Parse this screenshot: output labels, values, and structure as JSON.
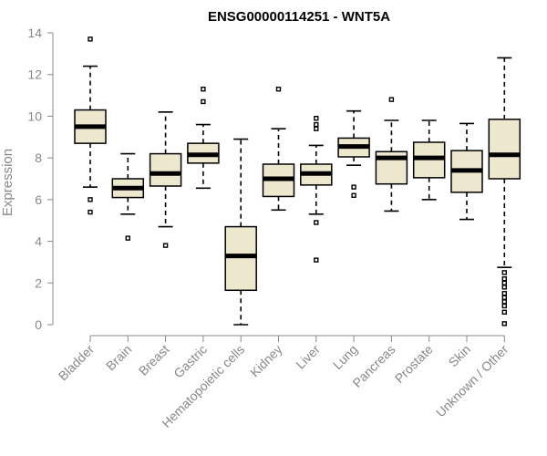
{
  "chart_data": {
    "type": "boxplot",
    "title": "ENSG00000114251 - WNT5A",
    "ylabel": "Expression",
    "ylim": [
      0,
      14
    ],
    "yticks": [
      0,
      2,
      4,
      6,
      8,
      10,
      12,
      14
    ],
    "grid": false,
    "categories": [
      "Bladder",
      "Brain",
      "Breast",
      "Gastric",
      "Hematopoietic cells",
      "Kidney",
      "Liver",
      "Lung",
      "Pancreas",
      "Prostate",
      "Skin",
      "Unknown / Other"
    ],
    "boxes": [
      {
        "category": "Bladder",
        "whisker_low": 6.6,
        "q1": 8.7,
        "median": 9.5,
        "q3": 10.3,
        "whisker_high": 12.4,
        "outliers": [
          13.7,
          6.0,
          5.4
        ]
      },
      {
        "category": "Brain",
        "whisker_low": 5.3,
        "q1": 6.1,
        "median": 6.55,
        "q3": 7.0,
        "whisker_high": 8.2,
        "outliers": [
          4.15
        ]
      },
      {
        "category": "Breast",
        "whisker_low": 4.7,
        "q1": 6.65,
        "median": 7.25,
        "q3": 8.2,
        "whisker_high": 10.2,
        "outliers": [
          3.8
        ]
      },
      {
        "category": "Gastric",
        "whisker_low": 6.55,
        "q1": 7.75,
        "median": 8.15,
        "q3": 8.7,
        "whisker_high": 9.6,
        "outliers": [
          10.7,
          11.3
        ]
      },
      {
        "category": "Hematopoietic cells",
        "whisker_low": 0.0,
        "q1": 1.65,
        "median": 3.3,
        "q3": 4.7,
        "whisker_high": 8.9,
        "outliers": []
      },
      {
        "category": "Kidney",
        "whisker_low": 5.5,
        "q1": 6.15,
        "median": 7.0,
        "q3": 7.7,
        "whisker_high": 9.4,
        "outliers": [
          11.3
        ]
      },
      {
        "category": "Liver",
        "whisker_low": 5.3,
        "q1": 6.7,
        "median": 7.25,
        "q3": 7.7,
        "whisker_high": 8.6,
        "outliers": [
          9.9,
          9.6,
          9.4,
          4.9,
          3.1
        ]
      },
      {
        "category": "Lung",
        "whisker_low": 7.65,
        "q1": 8.05,
        "median": 8.55,
        "q3": 8.95,
        "whisker_high": 10.25,
        "outliers": [
          6.6,
          6.2
        ]
      },
      {
        "category": "Pancreas",
        "whisker_low": 5.45,
        "q1": 6.75,
        "median": 8.0,
        "q3": 8.3,
        "whisker_high": 9.8,
        "outliers": [
          10.8
        ]
      },
      {
        "category": "Prostate",
        "whisker_low": 6.0,
        "q1": 7.05,
        "median": 8.0,
        "q3": 8.75,
        "whisker_high": 9.8,
        "outliers": []
      },
      {
        "category": "Skin",
        "whisker_low": 5.05,
        "q1": 6.35,
        "median": 7.4,
        "q3": 8.35,
        "whisker_high": 9.65,
        "outliers": []
      },
      {
        "category": "Unknown / Other",
        "whisker_low": 2.75,
        "q1": 7.0,
        "median": 8.15,
        "q3": 9.85,
        "whisker_high": 12.8,
        "outliers": [
          2.5,
          2.2,
          2.0,
          1.8,
          1.5,
          1.3,
          1.1,
          0.9,
          0.6,
          0.05
        ]
      }
    ]
  }
}
